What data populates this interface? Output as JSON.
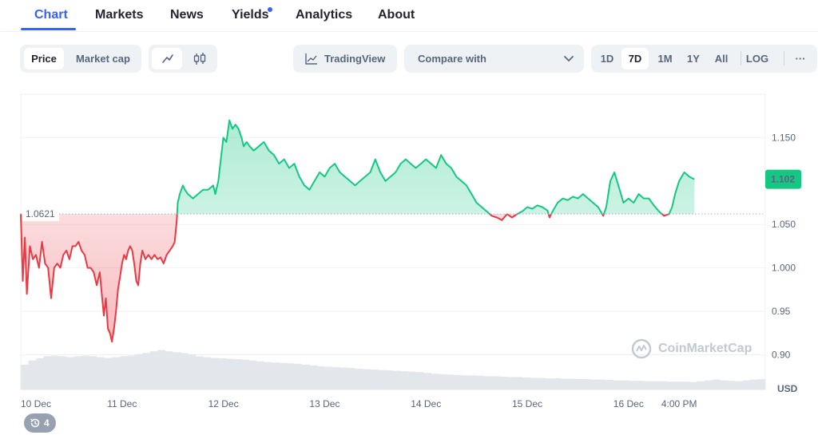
{
  "nav": {
    "tabs": [
      {
        "label": "Chart",
        "active": true
      },
      {
        "label": "Markets"
      },
      {
        "label": "News"
      },
      {
        "label": "Yields",
        "has_dot": true
      },
      {
        "label": "Analytics"
      },
      {
        "label": "About"
      }
    ]
  },
  "toolbar": {
    "price_label": "Price",
    "market_cap_label": "Market cap",
    "tradingview_label": "TradingView",
    "compare_label": "Compare with",
    "ranges": [
      "1D",
      "7D",
      "1M",
      "1Y",
      "All"
    ],
    "active_range": "7D",
    "log_label": "LOG",
    "more_label": "···"
  },
  "badge": {
    "count": "4"
  },
  "watermark": "CoinMarketCap",
  "colors": {
    "accent": "#3861fb",
    "up": "#16c784",
    "down": "#ea3943",
    "grid": "#eff2f5",
    "axis_text": "#58667e"
  },
  "chart_data": {
    "type": "line",
    "baseline": 1.0621,
    "baseline_label": "1.0621",
    "current_price": 1.102,
    "current_price_label": "1.102",
    "currency_label": "USD",
    "ylim": [
      0.86,
      1.2
    ],
    "yticks": [
      {
        "value": 1.15,
        "label": "1.150"
      },
      {
        "value": 1.05,
        "label": "1.050"
      },
      {
        "value": 1.0,
        "label": "1.000"
      },
      {
        "value": 0.95,
        "label": "0.95"
      },
      {
        "value": 0.9,
        "label": "0.90"
      }
    ],
    "xlim": [
      0,
      7.35
    ],
    "xticks": [
      {
        "x": 0,
        "label": "10 Dec"
      },
      {
        "x": 1,
        "label": "11 Dec"
      },
      {
        "x": 2,
        "label": "12 Dec"
      },
      {
        "x": 3,
        "label": "13 Dec"
      },
      {
        "x": 4,
        "label": "14 Dec"
      },
      {
        "x": 5,
        "label": "15 Dec"
      },
      {
        "x": 6,
        "label": "16 Dec"
      },
      {
        "x": 6.5,
        "label": "4:00 PM"
      }
    ],
    "points": [
      [
        0.0,
        1.062
      ],
      [
        0.02,
        0.985
      ],
      [
        0.04,
        1.035
      ],
      [
        0.06,
        0.97
      ],
      [
        0.09,
        1.025
      ],
      [
        0.12,
        1.01
      ],
      [
        0.15,
        1.015
      ],
      [
        0.18,
        1.0
      ],
      [
        0.21,
        1.03
      ],
      [
        0.24,
        1.005
      ],
      [
        0.27,
        1.0
      ],
      [
        0.3,
        0.965
      ],
      [
        0.33,
        1.0
      ],
      [
        0.36,
        1.005
      ],
      [
        0.39,
        1.0
      ],
      [
        0.42,
        1.015
      ],
      [
        0.45,
        1.02
      ],
      [
        0.48,
        1.01
      ],
      [
        0.51,
        1.025
      ],
      [
        0.54,
        1.025
      ],
      [
        0.57,
        1.03
      ],
      [
        0.6,
        1.02
      ],
      [
        0.63,
        1.015
      ],
      [
        0.66,
        1.0
      ],
      [
        0.69,
        1.0
      ],
      [
        0.72,
        0.995
      ],
      [
        0.75,
        0.98
      ],
      [
        0.78,
        0.995
      ],
      [
        0.8,
        0.97
      ],
      [
        0.82,
        0.945
      ],
      [
        0.84,
        0.965
      ],
      [
        0.86,
        0.93
      ],
      [
        0.88,
        0.925
      ],
      [
        0.9,
        0.915
      ],
      [
        0.92,
        0.93
      ],
      [
        0.94,
        0.95
      ],
      [
        0.96,
        0.975
      ],
      [
        0.98,
        0.99
      ],
      [
        1.0,
        1.005
      ],
      [
        1.02,
        1.015
      ],
      [
        1.04,
        1.01
      ],
      [
        1.06,
        1.02
      ],
      [
        1.08,
        1.025
      ],
      [
        1.1,
        1.02
      ],
      [
        1.12,
        1.005
      ],
      [
        1.14,
        0.985
      ],
      [
        1.16,
        0.98
      ],
      [
        1.18,
        1.005
      ],
      [
        1.2,
        1.02
      ],
      [
        1.23,
        1.01
      ],
      [
        1.26,
        1.015
      ],
      [
        1.29,
        1.01
      ],
      [
        1.32,
        1.015
      ],
      [
        1.35,
        1.01
      ],
      [
        1.38,
        1.012
      ],
      [
        1.41,
        1.005
      ],
      [
        1.44,
        1.015
      ],
      [
        1.47,
        1.02
      ],
      [
        1.5,
        1.025
      ],
      [
        1.52,
        1.03
      ],
      [
        1.54,
        1.055
      ],
      [
        1.55,
        1.075
      ],
      [
        1.57,
        1.085
      ],
      [
        1.6,
        1.095
      ],
      [
        1.62,
        1.09
      ],
      [
        1.65,
        1.085
      ],
      [
        1.7,
        1.08
      ],
      [
        1.75,
        1.085
      ],
      [
        1.8,
        1.09
      ],
      [
        1.85,
        1.09
      ],
      [
        1.9,
        1.095
      ],
      [
        1.92,
        1.085
      ],
      [
        1.95,
        1.1
      ],
      [
        1.97,
        1.12
      ],
      [
        2.0,
        1.15
      ],
      [
        2.03,
        1.145
      ],
      [
        2.06,
        1.17
      ],
      [
        2.09,
        1.16
      ],
      [
        2.12,
        1.165
      ],
      [
        2.15,
        1.16
      ],
      [
        2.18,
        1.15
      ],
      [
        2.2,
        1.14
      ],
      [
        2.23,
        1.145
      ],
      [
        2.26,
        1.14
      ],
      [
        2.3,
        1.135
      ],
      [
        2.35,
        1.14
      ],
      [
        2.4,
        1.145
      ],
      [
        2.45,
        1.135
      ],
      [
        2.5,
        1.13
      ],
      [
        2.55,
        1.12
      ],
      [
        2.6,
        1.125
      ],
      [
        2.65,
        1.115
      ],
      [
        2.7,
        1.12
      ],
      [
        2.75,
        1.105
      ],
      [
        2.8,
        1.095
      ],
      [
        2.85,
        1.09
      ],
      [
        2.9,
        1.1
      ],
      [
        2.95,
        1.11
      ],
      [
        3.0,
        1.105
      ],
      [
        3.05,
        1.115
      ],
      [
        3.1,
        1.12
      ],
      [
        3.15,
        1.11
      ],
      [
        3.2,
        1.105
      ],
      [
        3.25,
        1.1
      ],
      [
        3.3,
        1.095
      ],
      [
        3.35,
        1.1
      ],
      [
        3.4,
        1.105
      ],
      [
        3.45,
        1.11
      ],
      [
        3.5,
        1.125
      ],
      [
        3.55,
        1.11
      ],
      [
        3.6,
        1.1
      ],
      [
        3.65,
        1.105
      ],
      [
        3.7,
        1.11
      ],
      [
        3.75,
        1.12
      ],
      [
        3.8,
        1.125
      ],
      [
        3.85,
        1.12
      ],
      [
        3.9,
        1.115
      ],
      [
        3.95,
        1.12
      ],
      [
        4.0,
        1.125
      ],
      [
        4.05,
        1.12
      ],
      [
        4.1,
        1.115
      ],
      [
        4.15,
        1.13
      ],
      [
        4.2,
        1.12
      ],
      [
        4.25,
        1.115
      ],
      [
        4.3,
        1.105
      ],
      [
        4.35,
        1.1
      ],
      [
        4.4,
        1.095
      ],
      [
        4.45,
        1.085
      ],
      [
        4.5,
        1.075
      ],
      [
        4.55,
        1.07
      ],
      [
        4.6,
        1.065
      ],
      [
        4.65,
        1.06
      ],
      [
        4.7,
        1.058
      ],
      [
        4.75,
        1.055
      ],
      [
        4.8,
        1.062
      ],
      [
        4.85,
        1.058
      ],
      [
        4.9,
        1.062
      ],
      [
        4.95,
        1.065
      ],
      [
        5.0,
        1.07
      ],
      [
        5.05,
        1.068
      ],
      [
        5.1,
        1.072
      ],
      [
        5.15,
        1.07
      ],
      [
        5.2,
        1.066
      ],
      [
        5.22,
        1.058
      ],
      [
        5.25,
        1.065
      ],
      [
        5.3,
        1.075
      ],
      [
        5.35,
        1.08
      ],
      [
        5.4,
        1.078
      ],
      [
        5.45,
        1.082
      ],
      [
        5.5,
        1.08
      ],
      [
        5.55,
        1.085
      ],
      [
        5.6,
        1.08
      ],
      [
        5.65,
        1.075
      ],
      [
        5.7,
        1.07
      ],
      [
        5.75,
        1.06
      ],
      [
        5.78,
        1.07
      ],
      [
        5.82,
        1.1
      ],
      [
        5.86,
        1.11
      ],
      [
        5.9,
        1.095
      ],
      [
        5.95,
        1.075
      ],
      [
        6.0,
        1.08
      ],
      [
        6.05,
        1.075
      ],
      [
        6.1,
        1.085
      ],
      [
        6.15,
        1.08
      ],
      [
        6.2,
        1.08
      ],
      [
        6.25,
        1.072
      ],
      [
        6.3,
        1.065
      ],
      [
        6.35,
        1.06
      ],
      [
        6.4,
        1.062
      ],
      [
        6.43,
        1.07
      ],
      [
        6.46,
        1.085
      ],
      [
        6.5,
        1.1
      ],
      [
        6.55,
        1.11
      ],
      [
        6.6,
        1.105
      ],
      [
        6.65,
        1.102
      ]
    ],
    "volume": [
      0.6,
      0.7,
      0.75,
      0.8,
      0.82,
      0.8,
      0.78,
      0.8,
      0.82,
      0.8,
      0.78,
      0.76,
      0.78,
      0.8,
      0.82,
      0.85,
      0.88,
      0.92,
      0.95,
      0.92,
      0.9,
      0.88,
      0.85,
      0.8,
      0.78,
      0.76,
      0.75,
      0.74,
      0.73,
      0.72,
      0.7,
      0.68,
      0.66,
      0.65,
      0.64,
      0.63,
      0.62,
      0.6,
      0.58,
      0.56,
      0.55,
      0.54,
      0.53,
      0.52,
      0.5,
      0.49,
      0.48,
      0.47,
      0.46,
      0.45,
      0.44,
      0.43,
      0.42,
      0.4,
      0.38,
      0.37,
      0.36,
      0.35,
      0.34,
      0.34,
      0.33,
      0.32,
      0.32,
      0.31,
      0.3,
      0.3,
      0.29,
      0.28,
      0.28,
      0.27,
      0.27,
      0.26,
      0.26,
      0.25,
      0.25,
      0.24,
      0.24,
      0.23,
      0.22,
      0.22,
      0.21,
      0.21,
      0.2,
      0.2,
      0.2,
      0.19,
      0.19,
      0.19,
      0.18,
      0.2,
      0.22,
      0.24,
      0.22,
      0.21,
      0.2,
      0.22,
      0.24,
      0.25
    ]
  }
}
